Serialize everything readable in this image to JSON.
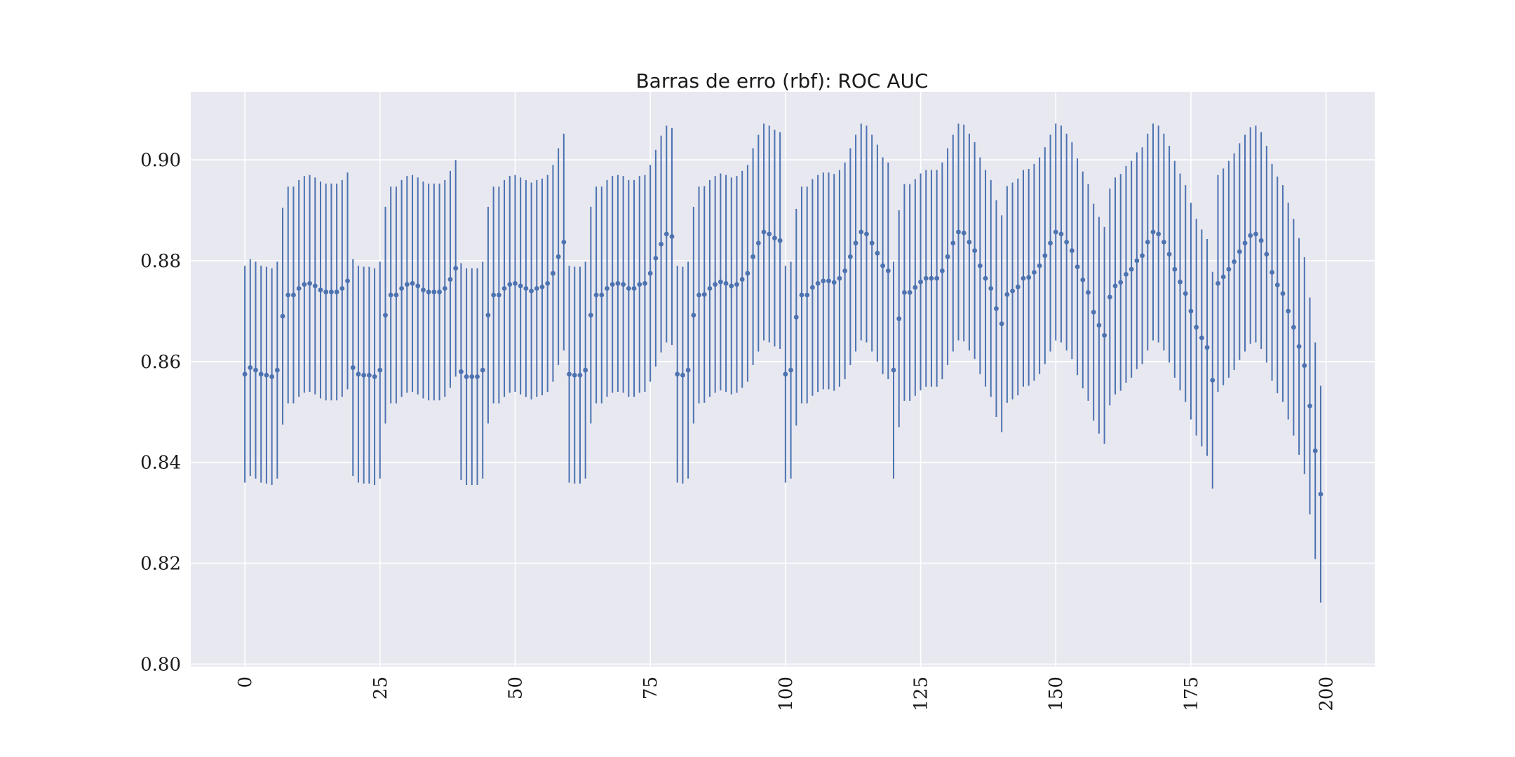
{
  "chart_data": {
    "type": "scatter",
    "title": "Barras de erro (rbf): ROC AUC",
    "xlabel": "",
    "ylabel": "",
    "xlim": [
      -10,
      209
    ],
    "ylim": [
      0.7995,
      0.9135
    ],
    "xticks": [
      0,
      25,
      50,
      75,
      100,
      125,
      150,
      175,
      200
    ],
    "xtick_labels": [
      "0",
      "25",
      "50",
      "75",
      "100",
      "125",
      "150",
      "175",
      "200"
    ],
    "yticks": [
      0.8,
      0.82,
      0.84,
      0.86,
      0.88,
      0.9
    ],
    "ytick_labels": [
      "0.80",
      "0.82",
      "0.84",
      "0.86",
      "0.88",
      "0.90"
    ],
    "grid": true,
    "legend": "none",
    "colors": {
      "background": "#e8e8f0",
      "grid": "#ffffff",
      "series": "#4c72b0"
    },
    "error_bar": 0.0215,
    "x_start": 0,
    "y": [
      0.8575,
      0.8588,
      0.8583,
      0.8575,
      0.8573,
      0.857,
      0.8583,
      0.869,
      0.8732,
      0.8732,
      0.8745,
      0.8753,
      0.8755,
      0.875,
      0.8742,
      0.8738,
      0.8738,
      0.8738,
      0.8745,
      0.876,
      0.8588,
      0.8575,
      0.8573,
      0.8573,
      0.857,
      0.8583,
      0.8692,
      0.8732,
      0.8732,
      0.8745,
      0.8753,
      0.8755,
      0.875,
      0.8742,
      0.8738,
      0.8738,
      0.8738,
      0.8745,
      0.8763,
      0.8785,
      0.858,
      0.857,
      0.857,
      0.857,
      0.8583,
      0.8692,
      0.8732,
      0.8732,
      0.8745,
      0.8753,
      0.8755,
      0.875,
      0.8745,
      0.874,
      0.8745,
      0.8748,
      0.8755,
      0.8775,
      0.8808,
      0.8837,
      0.8575,
      0.8573,
      0.8573,
      0.8583,
      0.8692,
      0.8732,
      0.8732,
      0.8745,
      0.8753,
      0.8755,
      0.8753,
      0.8745,
      0.8745,
      0.8753,
      0.8755,
      0.8775,
      0.8805,
      0.8833,
      0.8853,
      0.8848,
      0.8575,
      0.8573,
      0.8583,
      0.8692,
      0.8732,
      0.8733,
      0.8745,
      0.8753,
      0.8758,
      0.8755,
      0.875,
      0.8753,
      0.8763,
      0.8775,
      0.8808,
      0.8835,
      0.8857,
      0.8853,
      0.8845,
      0.884,
      0.8575,
      0.8583,
      0.8688,
      0.8732,
      0.8732,
      0.8747,
      0.8755,
      0.876,
      0.876,
      0.8757,
      0.8765,
      0.878,
      0.8808,
      0.8835,
      0.8857,
      0.8853,
      0.8835,
      0.8815,
      0.879,
      0.878,
      0.8583,
      0.8685,
      0.8737,
      0.8737,
      0.8747,
      0.8758,
      0.8765,
      0.8765,
      0.8765,
      0.878,
      0.8808,
      0.8835,
      0.8857,
      0.8855,
      0.8837,
      0.882,
      0.879,
      0.8765,
      0.8745,
      0.8705,
      0.8675,
      0.8733,
      0.874,
      0.8748,
      0.8765,
      0.8767,
      0.8777,
      0.879,
      0.881,
      0.8835,
      0.8857,
      0.8853,
      0.8837,
      0.882,
      0.8788,
      0.8762,
      0.8737,
      0.8698,
      0.8672,
      0.8652,
      0.8728,
      0.875,
      0.8757,
      0.8773,
      0.8783,
      0.88,
      0.881,
      0.8837,
      0.8857,
      0.8853,
      0.8837,
      0.8813,
      0.8783,
      0.8758,
      0.8735,
      0.87,
      0.8668,
      0.8647,
      0.8628,
      0.8563,
      0.8755,
      0.8768,
      0.8783,
      0.8798,
      0.8818,
      0.8835,
      0.885,
      0.8853,
      0.884,
      0.8813,
      0.8777,
      0.8752,
      0.8735,
      0.87,
      0.8668,
      0.863,
      0.8592,
      0.8512,
      0.8423,
      0.8337
    ]
  }
}
